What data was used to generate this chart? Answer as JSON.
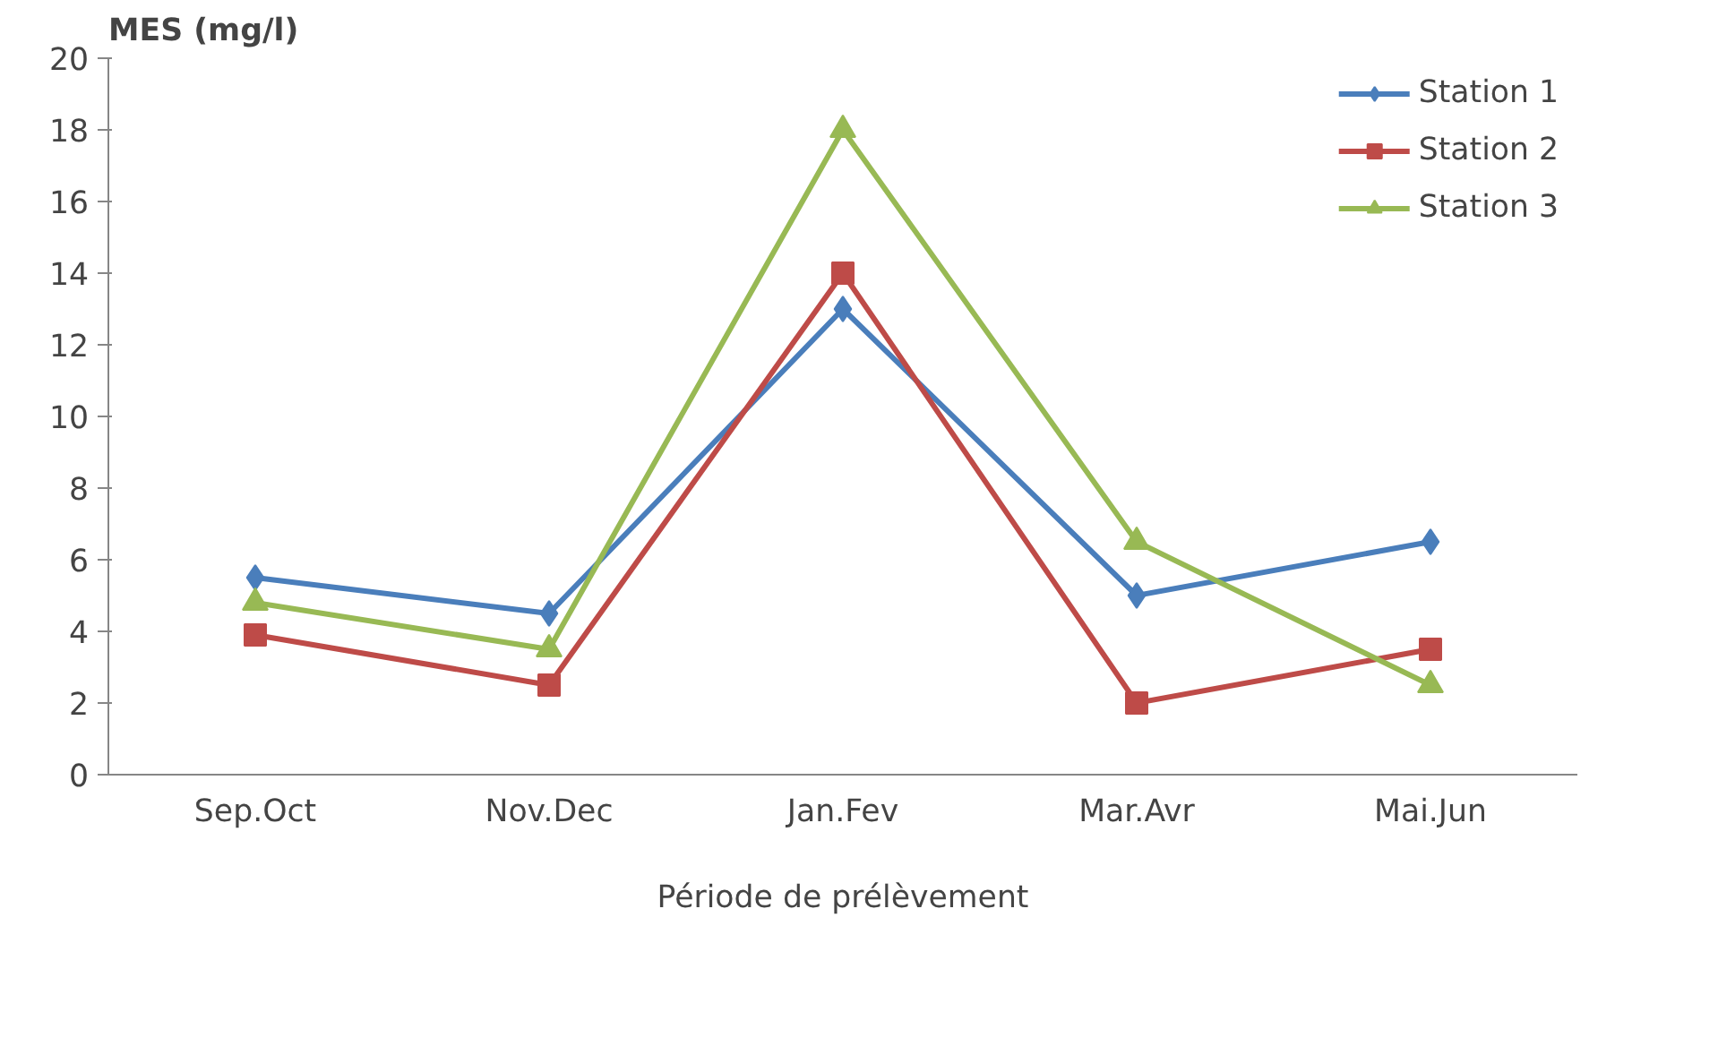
{
  "chart_data": {
    "type": "line",
    "ylabel": "MES (mg/l)",
    "xlabel": "Période de prélèvement",
    "categories": [
      "Sep.Oct",
      "Nov.Dec",
      "Jan.Fev",
      "Mar.Avr",
      "Mai.Jun"
    ],
    "ylim": [
      0,
      20
    ],
    "yticks": [
      0,
      2,
      4,
      6,
      8,
      10,
      12,
      14,
      16,
      18,
      20
    ],
    "grid": false,
    "legend": "top right",
    "line_style": "solid",
    "series": [
      {
        "name": "Station 1",
        "color": "#4a7ebb",
        "marker": "diamond",
        "values": [
          5.5,
          4.5,
          13,
          5,
          6.5
        ]
      },
      {
        "name": "Station 2",
        "color": "#be4b48",
        "marker": "square",
        "values": [
          3.9,
          2.5,
          14,
          2,
          3.5
        ]
      },
      {
        "name": "Station 3",
        "color": "#98b954",
        "marker": "triangle",
        "values": [
          4.8,
          3.5,
          18,
          6.5,
          2.5
        ]
      }
    ]
  }
}
